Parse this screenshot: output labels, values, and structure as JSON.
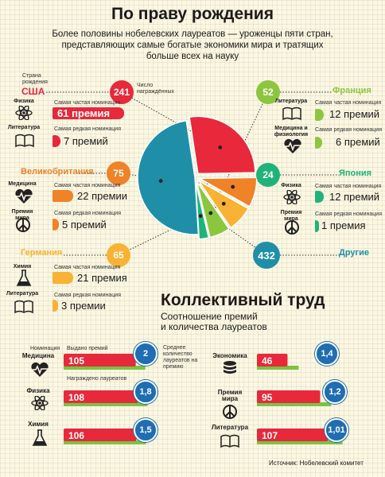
{
  "header": {
    "title": "По праву рождения",
    "subtitle_lines": [
      "Более половины нобелевских лауреатов — уроженцы пяти стран,",
      "представляющих самые богатые экономики мира и тратящих",
      "больше всех на науку"
    ]
  },
  "legend_labels": {
    "country_of_birth": "Страна рождения",
    "laureate_count": "Число награждённых",
    "most_frequent": "Самая частая номинация",
    "most_rare": "Самая редкая номинация"
  },
  "countries": [
    {
      "name": "США",
      "count": "241",
      "color": "#e8283b",
      "top": {
        "cat": "Физика",
        "prizes": "61 премия"
      },
      "rare": {
        "cat": "Литература",
        "prizes": "7 премий"
      }
    },
    {
      "name": "Великобритания",
      "count": "75",
      "color": "#f08228",
      "top": {
        "cat": "Медицина",
        "prizes": "22 премии"
      },
      "rare": {
        "cat": "Премия мира",
        "prizes": "5 премий"
      }
    },
    {
      "name": "Германия",
      "count": "65",
      "color": "#f9b233",
      "top": {
        "cat": "Химия",
        "prizes": "21 премия"
      },
      "rare": {
        "cat": "Литература",
        "prizes": "3 премии"
      }
    },
    {
      "name": "Франция",
      "count": "52",
      "color": "#8cc63f",
      "top": {
        "cat": "Литература",
        "prizes": "12 премий"
      },
      "rare": {
        "cat": "Медицина и физиология",
        "prizes": "6 премий"
      }
    },
    {
      "name": "Япония",
      "count": "24",
      "color": "#1fb37a",
      "top": {
        "cat": "Физика",
        "prizes": "12 премий"
      },
      "rare": {
        "cat": "Премия мира",
        "prizes": "1 премия"
      }
    },
    {
      "name": "Другие",
      "count": "432",
      "color": "#1f8fa8"
    }
  ],
  "collective": {
    "title": "Коллективный труд",
    "subtitle_lines": [
      "Соотношение премий",
      "и количества лауреатов"
    ],
    "labels": {
      "nomination": "Номинация",
      "prizes_given": "Выдано премий",
      "laureates_awarded": "Награждено лауреатов",
      "avg_per_prize": "Среднее количество лауреатов на премию"
    },
    "rows": [
      {
        "name": "Медицина",
        "prizes": 105,
        "ratio": "2"
      },
      {
        "name": "Физика",
        "prizes": 108,
        "ratio": "1,8"
      },
      {
        "name": "Химия",
        "prizes": 106,
        "ratio": "1,5"
      },
      {
        "name": "Экономика",
        "prizes": 46,
        "ratio": "1,4"
      },
      {
        "name": "Премия мира",
        "prizes": 95,
        "ratio": "1,2"
      },
      {
        "name": "Литература",
        "prizes": 107,
        "ratio": "1,01"
      }
    ]
  },
  "source": "Источник: Нобелевский комитет",
  "chart_data": [
    {
      "type": "pie",
      "title": "По праву рождения",
      "categories": [
        "США",
        "Великобритания",
        "Германия",
        "Франция",
        "Япония",
        "Другие"
      ],
      "values": [
        241,
        75,
        65,
        52,
        24,
        432
      ],
      "colors": [
        "#e8283b",
        "#f08228",
        "#f9b233",
        "#8cc63f",
        "#1fb37a",
        "#1f8fa8"
      ]
    },
    {
      "type": "bar",
      "title": "Коллективный труд",
      "categories": [
        "Медицина",
        "Физика",
        "Химия",
        "Экономика",
        "Премия мира",
        "Литература"
      ],
      "series": [
        {
          "name": "Выдано премий",
          "values": [
            105,
            108,
            106,
            46,
            95,
            107
          ]
        },
        {
          "name": "Среднее количество лауреатов на премию",
          "values": [
            2,
            1.8,
            1.5,
            1.4,
            1.2,
            1.01
          ]
        }
      ]
    }
  ]
}
